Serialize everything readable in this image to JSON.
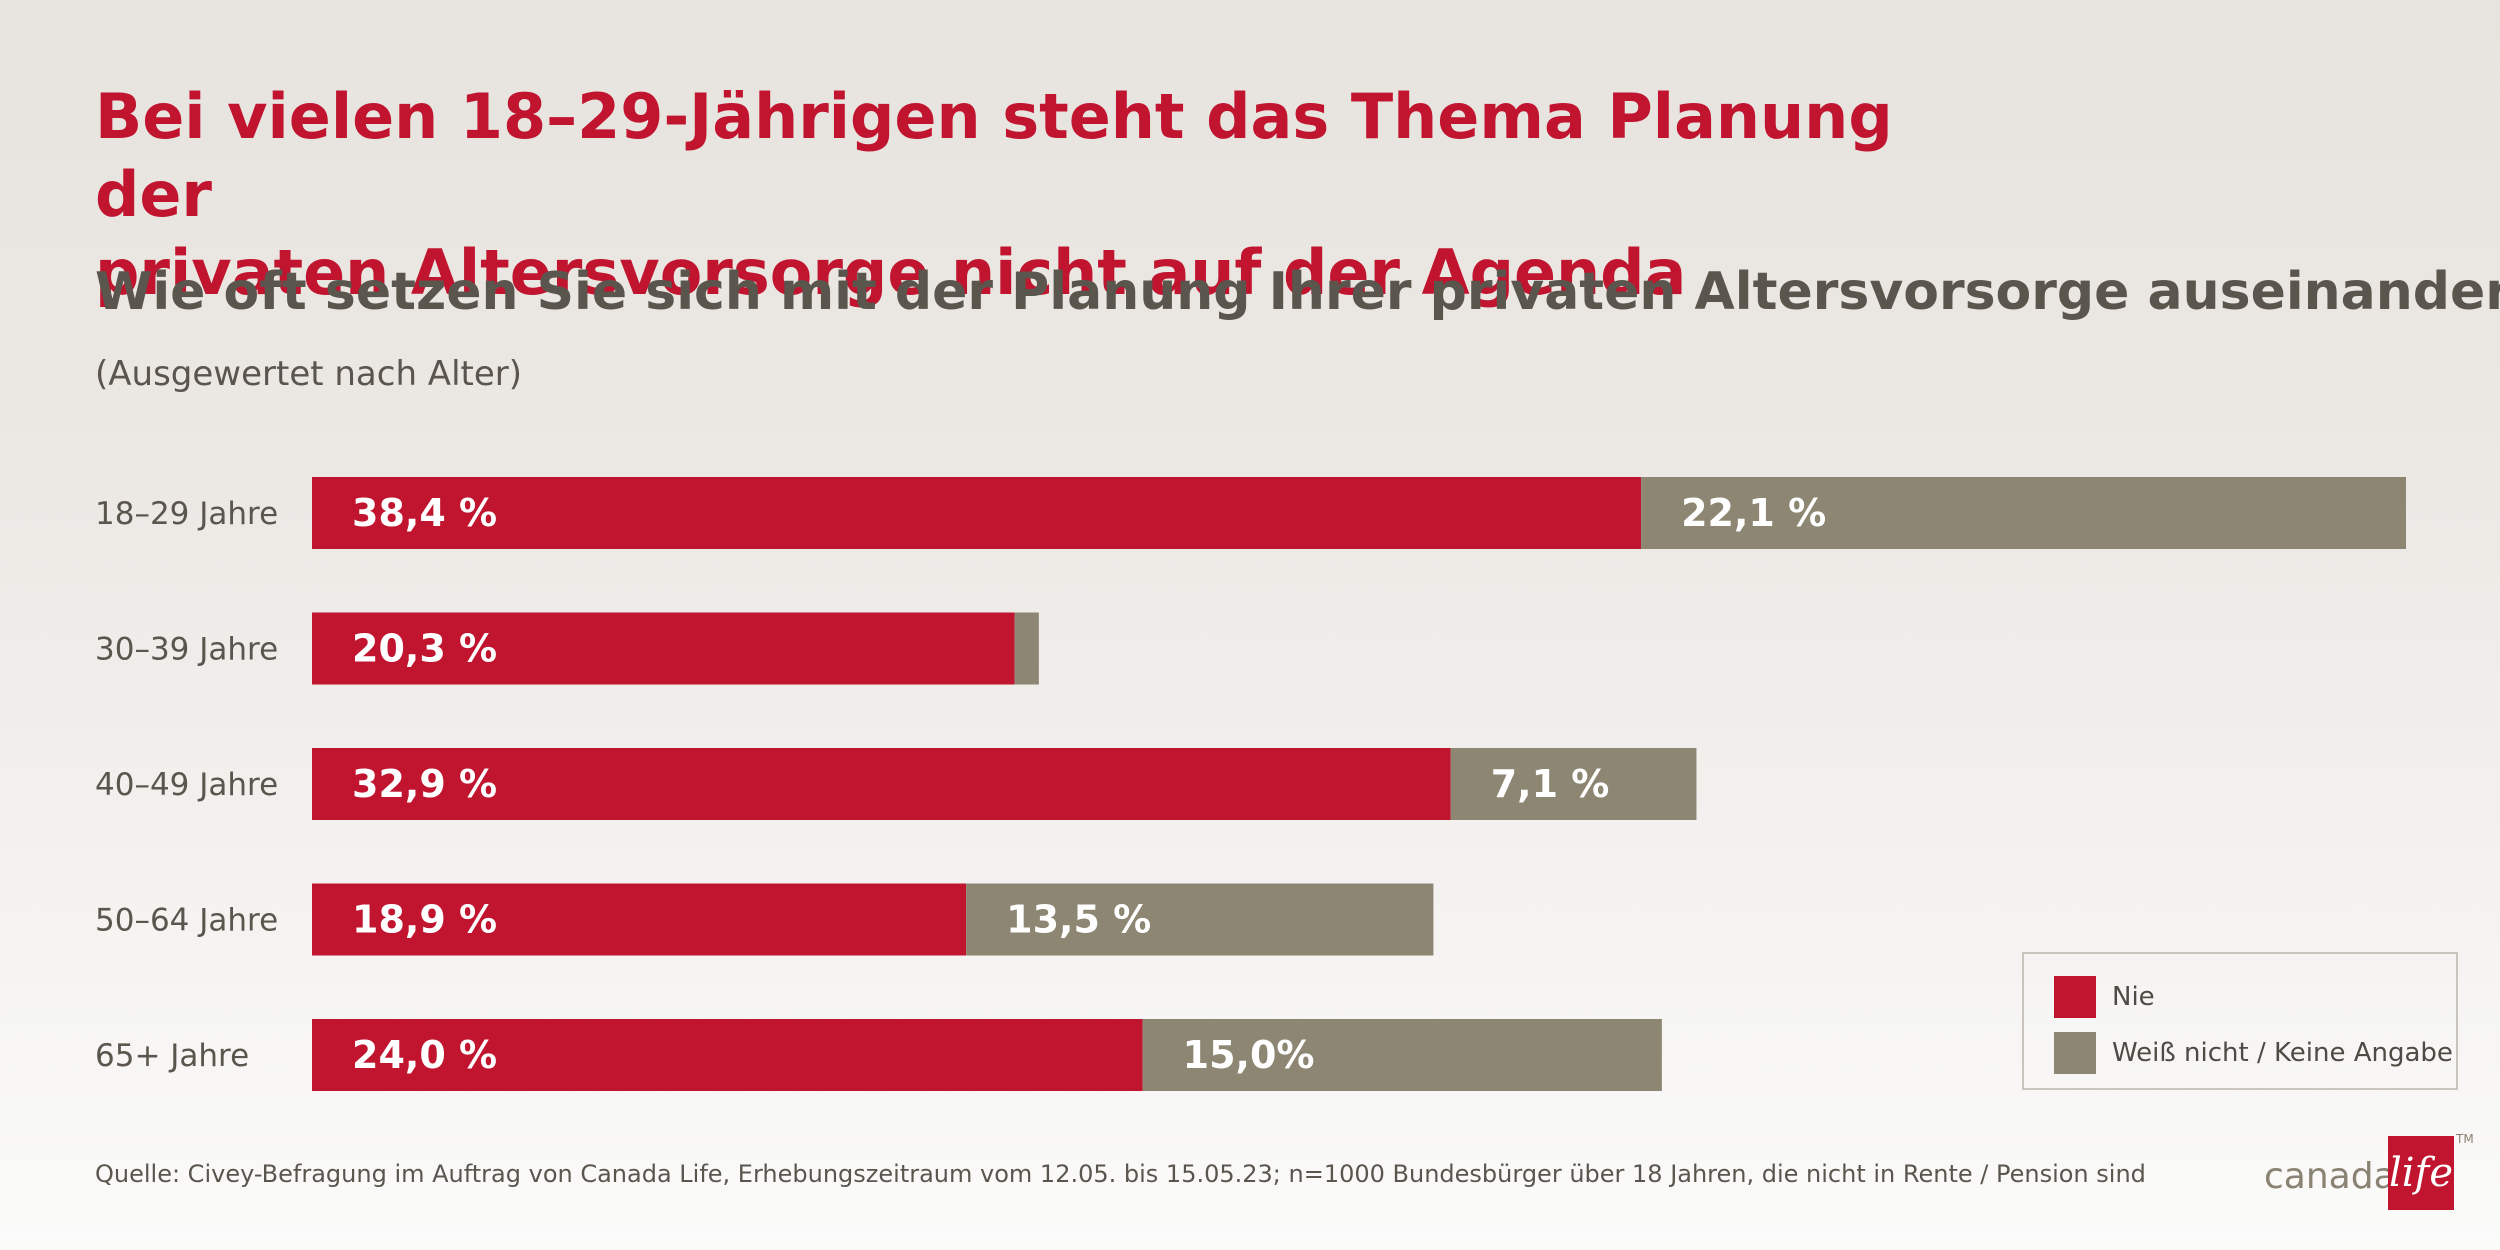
{
  "header": {
    "title_line1": "Bei vielen 18–29-Jährigen steht das Thema Planung der",
    "title_line2": "privaten Altersvorsorge nicht auf der Agenda",
    "subtitle": "Wie oft setzen Sie sich mit der Planung Ihrer privaten Altersvorsorge auseinander?",
    "note": "(Ausgewertet nach Alter)"
  },
  "chart_data": {
    "type": "bar",
    "orientation": "horizontal",
    "stacked": true,
    "categories": [
      "18–29 Jahre",
      "30–39 Jahre",
      "40–49 Jahre",
      "50–64 Jahre",
      "65+ Jahre"
    ],
    "series": [
      {
        "name": "Nie",
        "color": "#c0142f",
        "values": [
          38.4,
          20.3,
          32.9,
          18.9,
          24.0
        ],
        "labels": [
          "38,4 %",
          "20,3 %",
          "32,9 %",
          "18,9 %",
          "24,0 %"
        ]
      },
      {
        "name": "Weiß nicht / Keine Angabe",
        "color": "#8c8673",
        "values": [
          22.1,
          0.7,
          7.1,
          13.5,
          15.0
        ],
        "labels": [
          "22,1 %",
          "",
          "7,1 %",
          "13,5 %",
          "15,0%"
        ]
      }
    ],
    "xlim": [
      0,
      60.5
    ],
    "grid": false,
    "legend_position": "bottom-right"
  },
  "legend": [
    {
      "label": "Nie",
      "color": "#c0142f"
    },
    {
      "label": "Weiß nicht / Keine Angabe",
      "color": "#8c8673"
    }
  ],
  "footer": {
    "source": "Quelle: Civey-Befragung im Auftrag von Canada Life, Erhebungszeitraum vom 12.05. bis 15.05.23; n=1000 Bundesbürger über 18 Jahren, die nicht in Rente / Pension sind",
    "logo_text": "canada",
    "logo_box_text": "life",
    "logo_tm": "TM"
  }
}
